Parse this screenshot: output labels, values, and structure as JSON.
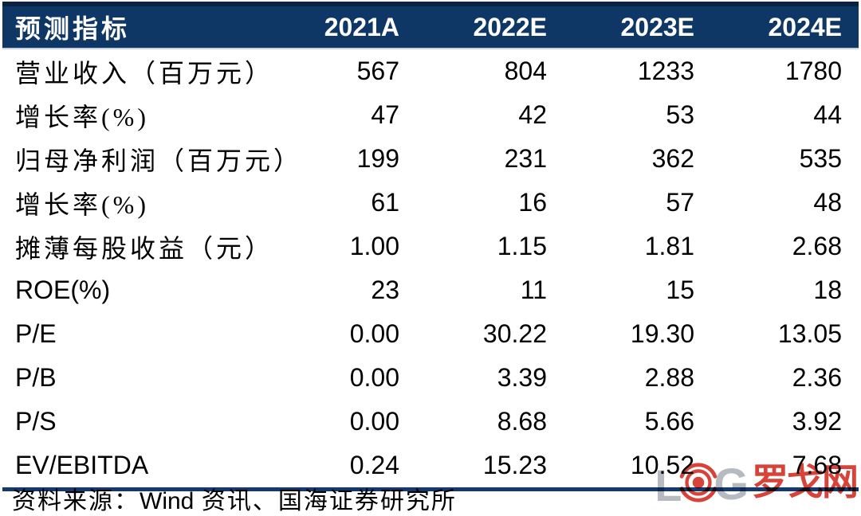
{
  "table": {
    "header": {
      "indicator_label": "预测指标",
      "years": [
        "2021A",
        "2022E",
        "2023E",
        "2024E"
      ]
    },
    "rows": [
      {
        "label": "营业收入（百万元）",
        "values": [
          "567",
          "804",
          "1233",
          "1780"
        ]
      },
      {
        "label": "增长率(%)",
        "values": [
          "47",
          "42",
          "53",
          "44"
        ]
      },
      {
        "label": "归母净利润（百万元）",
        "values": [
          "199",
          "231",
          "362",
          "535"
        ]
      },
      {
        "label": "增长率(%)",
        "values": [
          "61",
          "16",
          "57",
          "48"
        ]
      },
      {
        "label": "摊薄每股收益（元）",
        "values": [
          "1.00",
          "1.15",
          "1.81",
          "2.68"
        ]
      },
      {
        "label": "ROE(%)",
        "values": [
          "23",
          "11",
          "15",
          "18"
        ]
      },
      {
        "label": "P/E",
        "values": [
          "0.00",
          "30.22",
          "19.30",
          "13.05"
        ]
      },
      {
        "label": "P/B",
        "values": [
          "0.00",
          "3.39",
          "2.88",
          "2.36"
        ]
      },
      {
        "label": "P/S",
        "values": [
          "0.00",
          "8.68",
          "5.66",
          "3.92"
        ]
      },
      {
        "label": "EV/EBITDA",
        "values": [
          "0.24",
          "15.23",
          "10.52",
          "7.68"
        ]
      }
    ]
  },
  "footer": {
    "source_prefix": "资料来源：",
    "source_wind": "Wind",
    "source_suffix": " 资讯、国海证券研究所"
  },
  "watermark": {
    "letter_l": "L",
    "letter_g": "G",
    "site_name": "罗戈网"
  },
  "colors": {
    "header_bg": "#0f3765",
    "header_top": "#0b2342",
    "header_edge": "#c9d3df",
    "rule": "#16396b",
    "logo_red": "#d6392e",
    "logo_gray": "#b2b8be"
  }
}
